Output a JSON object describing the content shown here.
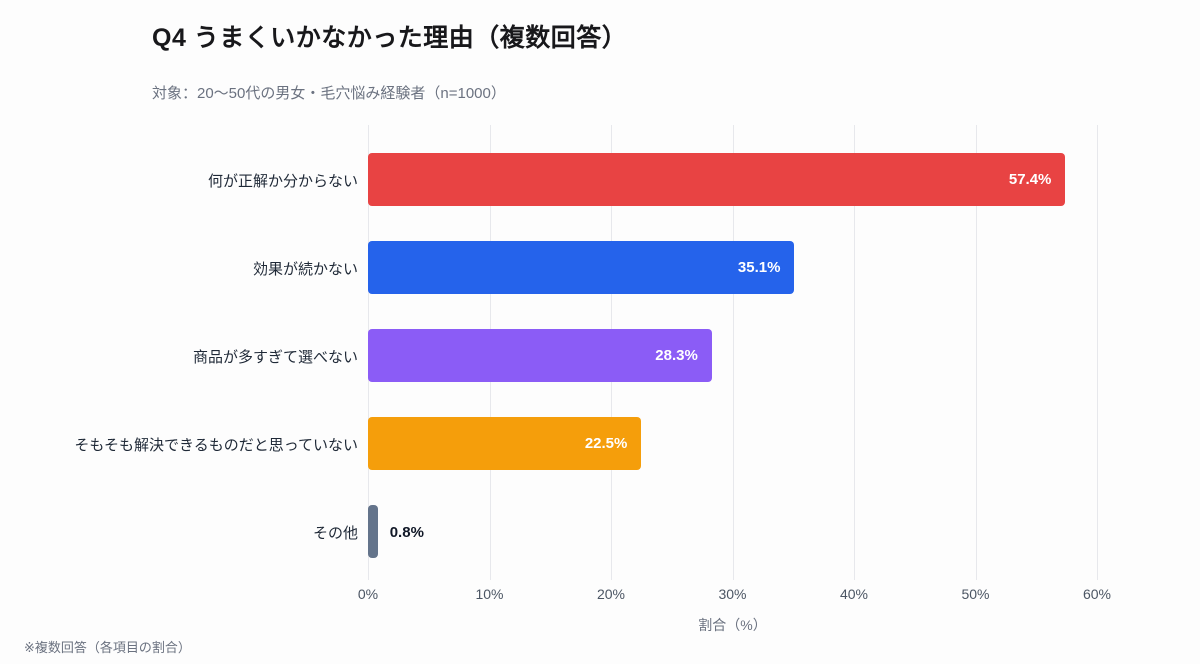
{
  "page": {
    "title": "Q4 うまくいかなかった理由（複数回答）",
    "subtitle": "対象：20〜50代の男女・毛穴悩み経験者（n=1000）",
    "footnote": "※複数回答（各項目の割合）"
  },
  "chart_data": {
    "type": "bar",
    "orientation": "horizontal",
    "title": "Q4 うまくいかなかった理由（複数回答）",
    "subtitle": "対象：20〜50代の男女・毛穴悩み経験者（n=1000）",
    "categories": [
      "何が正解か分からない",
      "効果が続かない",
      "商品が多すぎて選べない",
      "そもそも解決できるものだと思っていない",
      "その他"
    ],
    "values": [
      57.4,
      35.1,
      28.3,
      22.5,
      0.8
    ],
    "value_labels": [
      "57.4%",
      "35.1%",
      "28.3%",
      "22.5%",
      "0.8%"
    ],
    "bar_colors": [
      "#e84343",
      "#2563eb",
      "#8b5cf6",
      "#f59e0b",
      "#64748b"
    ],
    "xlabel": "割合（%）",
    "xlim": [
      0,
      60
    ],
    "x_ticks": [
      "0%",
      "10%",
      "20%",
      "30%",
      "40%",
      "50%",
      "60%"
    ],
    "x_tick_values": [
      0,
      10,
      20,
      30,
      40,
      50,
      60
    ],
    "grid": true,
    "legend": "none",
    "note": "※複数回答（各項目の割合）"
  }
}
